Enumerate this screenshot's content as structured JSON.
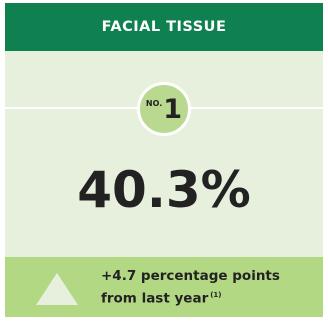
{
  "header": {
    "title": "FACIAL TISSUE"
  },
  "rank": {
    "prefix": "NO.",
    "number": "1"
  },
  "share": {
    "value": "40.3%"
  },
  "change": {
    "line1": "+4.7 percentage points",
    "line2": "from last year",
    "footnote": "(1)",
    "icon": "triangle-up-icon"
  },
  "colors": {
    "header_bg": "#0f8050",
    "card_bg": "#e6f0dc",
    "accent": "#b3d884"
  }
}
